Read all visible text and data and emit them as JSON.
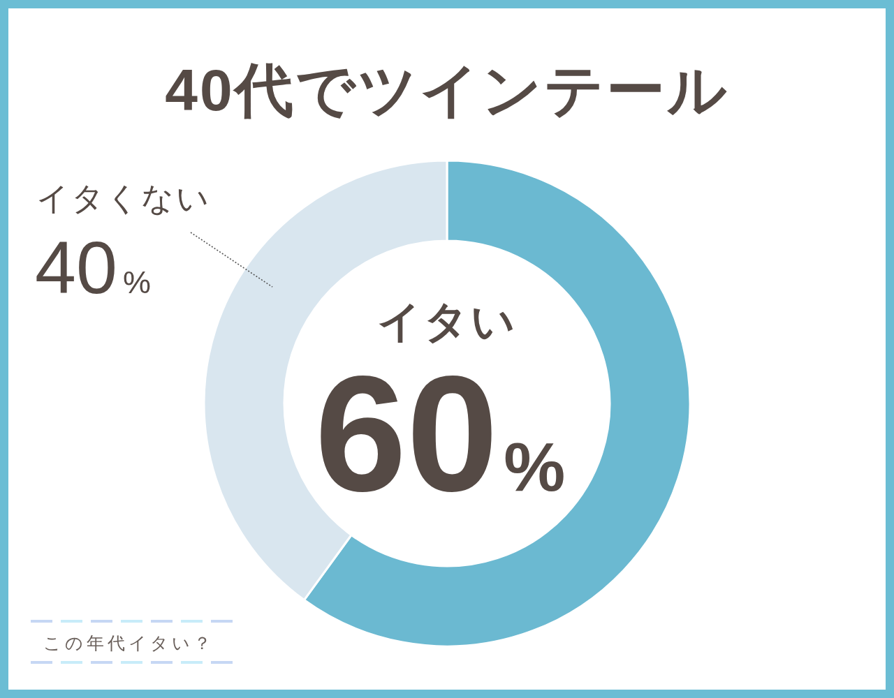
{
  "chart_data": {
    "type": "donut",
    "title": "40代でツインテール",
    "categories": [
      "イタい",
      "イタくない"
    ],
    "values": [
      60,
      40
    ],
    "colors": [
      "#6bb9d1",
      "#d9e6ef"
    ],
    "value_labels": [
      "60%",
      "40%"
    ],
    "annotations": [
      "この年代イタい？"
    ]
  }
}
